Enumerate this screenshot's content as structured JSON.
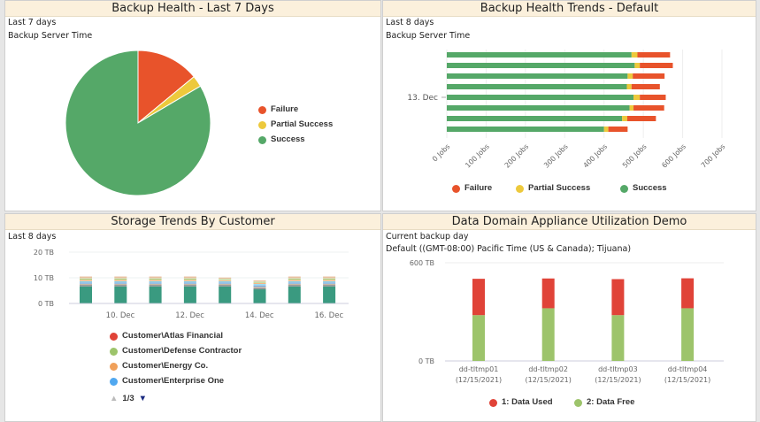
{
  "panels": {
    "health": {
      "title": "Backup Health - Last 7 Days",
      "sub1": "Last 7 days",
      "sub2": "Backup Server Time"
    },
    "trends": {
      "title": "Backup Health Trends - Default",
      "sub1": "Last 8 days",
      "sub2": "Backup Server Time"
    },
    "storage": {
      "title": "Storage Trends By Customer",
      "sub1": "Last 8 days",
      "pager": "1/3"
    },
    "dd": {
      "title": "Data Domain Appliance Utilization Demo",
      "sub1": "Current backup day",
      "sub2": "Default ((GMT-08:00) Pacific Time (US & Canada); Tijuana)"
    }
  },
  "chart_data": [
    {
      "type": "pie",
      "title": "Backup Health - Last 7 Days",
      "legend": "right",
      "slices": [
        {
          "name": "Failure",
          "value": 14,
          "color": "#e8532b"
        },
        {
          "name": "Partial Success",
          "value": 2.5,
          "color": "#edc93c"
        },
        {
          "name": "Success",
          "value": 83.5,
          "color": "#55a868"
        }
      ]
    },
    {
      "type": "bar",
      "orientation": "horizontal",
      "stacked": true,
      "title": "Backup Health Trends - Default",
      "xlim": [
        0,
        700
      ],
      "xticks": [
        "0 Jobs",
        "100 Jobs",
        "200 Jobs",
        "300 Jobs",
        "400 Jobs",
        "500 Jobs",
        "600 Jobs",
        "700 Jobs"
      ],
      "ytick_label": "13. Dec",
      "series": [
        {
          "name": "Success",
          "color": "#55a868",
          "values": [
            470,
            478,
            460,
            458,
            475,
            465,
            446,
            400
          ]
        },
        {
          "name": "Partial Success",
          "color": "#edc93c",
          "values": [
            15,
            13,
            13,
            12,
            16,
            10,
            13,
            11
          ]
        },
        {
          "name": "Failure",
          "color": "#e8532b",
          "values": [
            83,
            84,
            81,
            72,
            66,
            78,
            73,
            49
          ]
        }
      ]
    },
    {
      "type": "bar",
      "stacked": true,
      "title": "Storage Trends By Customer",
      "ylim": [
        0,
        20
      ],
      "yticks": [
        "0 TB",
        "10 TB",
        "20 TB"
      ],
      "xticks": [
        "10. Dec",
        "12. Dec",
        "14. Dec",
        "16. Dec"
      ],
      "segments_colors": [
        "#3a9a80",
        "#555555",
        "#c9b8a8",
        "#4d8fcf",
        "#7fd0f0",
        "#f0a060",
        "#a9cf7e",
        "#e8c0a0"
      ],
      "stacks": [
        [
          6.6,
          0.5,
          0.5,
          0.5,
          0.5,
          0.5,
          0.6,
          0.8
        ],
        [
          6.6,
          0.5,
          0.5,
          0.5,
          0.5,
          0.5,
          0.6,
          0.8
        ],
        [
          6.6,
          0.5,
          0.5,
          0.5,
          0.5,
          0.5,
          0.6,
          0.8
        ],
        [
          6.6,
          0.5,
          0.5,
          0.5,
          0.5,
          0.5,
          0.6,
          0.8
        ],
        [
          6.6,
          0.5,
          0.5,
          0.5,
          0.5,
          0.4,
          0.5,
          0.6
        ],
        [
          5.5,
          0.5,
          0.5,
          0.5,
          0.5,
          0.4,
          0.5,
          0.6
        ],
        [
          6.6,
          0.5,
          0.5,
          0.5,
          0.5,
          0.5,
          0.6,
          0.8
        ],
        [
          6.6,
          0.5,
          0.5,
          0.5,
          0.5,
          0.5,
          0.6,
          0.8
        ]
      ],
      "legend": [
        {
          "name": "Customer\\Atlas Financial",
          "color": "#e04338"
        },
        {
          "name": "Customer\\Defense Contractor",
          "color": "#9dc46b"
        },
        {
          "name": "Customer\\Energy Co.",
          "color": "#f0a05a"
        },
        {
          "name": "Customer\\Enterprise One",
          "color": "#50a8f0"
        }
      ]
    },
    {
      "type": "bar",
      "stacked": true,
      "title": "Data Domain Appliance Utilization Demo",
      "ylim": [
        0,
        600
      ],
      "yticks": [
        "0 TB",
        "600 TB"
      ],
      "categories": [
        [
          "dd-tltmp01",
          "(12/15/2021)"
        ],
        [
          "dd-tltmp02",
          "(12/15/2021)"
        ],
        [
          "dd-tltmp03",
          "(12/15/2021)"
        ],
        [
          "dd-tltmp04",
          "(12/15/2021)"
        ]
      ],
      "series": [
        {
          "name": "2: Data Free",
          "color": "#9dc46b",
          "values": [
            280,
            322,
            280,
            322
          ]
        },
        {
          "name": "1: Data Used",
          "color": "#e04338",
          "values": [
            222,
            182,
            220,
            183
          ]
        }
      ],
      "legend": [
        {
          "name": "1: Data Used",
          "color": "#e04338"
        },
        {
          "name": "2: Data Free",
          "color": "#9dc46b"
        }
      ]
    }
  ]
}
